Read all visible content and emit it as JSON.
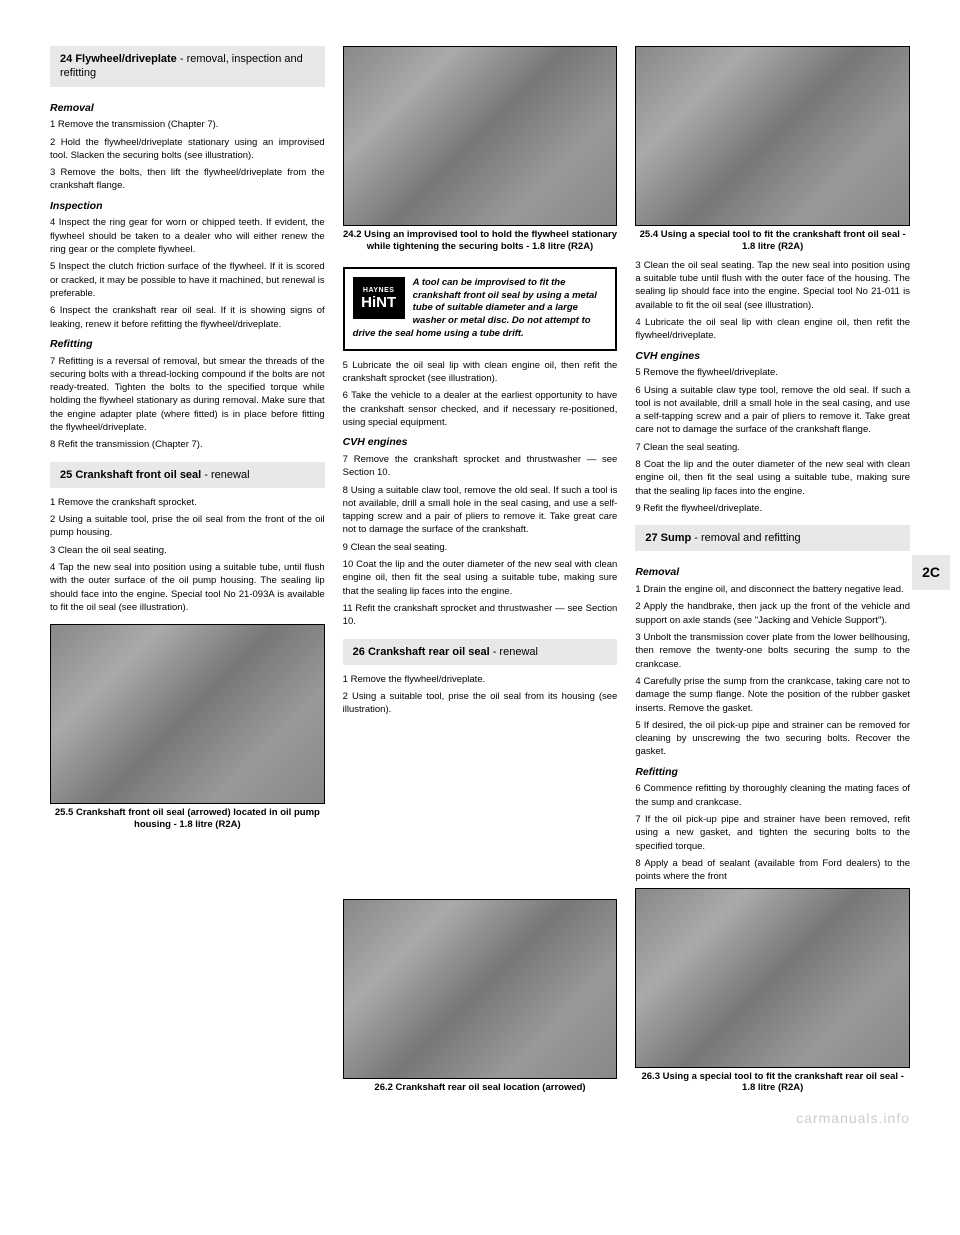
{
  "side_tab": "2C",
  "watermark": "carmanuals.info",
  "col1": {
    "sec24": {
      "num": "24",
      "title": "Flywheel/driveplate",
      "subtitle": " - removal, inspection and refitting",
      "removal_h": "Removal",
      "p1": "1 Remove the transmission (Chapter 7).",
      "p2": "2 Hold the flywheel/driveplate stationary using an improvised tool. Slacken the securing bolts (see illustration).",
      "p3": "3 Remove the bolts, then lift the flywheel/driveplate from the crankshaft flange.",
      "inspection_h": "Inspection",
      "p4": "4 Inspect the ring gear for worn or chipped teeth. If evident, the flywheel should be taken to a dealer who will either renew the ring gear or the complete flywheel.",
      "p5": "5 Inspect the clutch friction surface of the flywheel. If it is scored or cracked, it may be possible to have it machined, but renewal is preferable.",
      "p6": "6 Inspect the crankshaft rear oil seal. If it is showing signs of leaking, renew it before refitting the flywheel/driveplate.",
      "refitting_h": "Refitting",
      "p7": "7 Refitting is a reversal of removal, but smear the threads of the securing bolts with a thread-locking compound if the bolts are not ready-treated. Tighten the bolts to the specified torque while holding the flywheel stationary as during removal. Make sure that the engine adapter plate (where fitted) is in place before fitting the flywheel/driveplate.",
      "p8": "8 Refit the transmission (Chapter 7)."
    },
    "sec25": {
      "num": "25",
      "title": "Crankshaft front oil seal",
      "subtitle": " - renewal",
      "p1": "1 Remove the crankshaft sprocket.",
      "p2": "2 Using a suitable tool, prise the oil seal from the front of the oil pump housing.",
      "p3": "3 Clean the oil seal seating.",
      "p4": "4 Tap the new seal into position using a suitable tube, until flush with the outer surface of the oil pump housing. The sealing lip should face into the engine. Special tool No 21-093A is available to fit the oil seal (see illustration)."
    },
    "fig25_5": {
      "caption": "25.5 Crankshaft front oil seal (arrowed) located in oil pump housing - 1.8 litre (R2A)"
    }
  },
  "col2": {
    "fig24_2": {
      "caption": "24.2 Using an improvised tool to hold the flywheel stationary while tightening the securing bolts - 1.8 litre (R2A)"
    },
    "hint": {
      "haynes": "HAYNES",
      "hint": "HiNT",
      "text": "A tool can be improvised to fit the crankshaft front oil seal by using a metal tube of suitable diameter and a large washer or metal disc. Do not attempt to drive the seal home using a tube drift."
    },
    "p5": "5 Lubricate the oil seal lip with clean engine oil, then refit the crankshaft sprocket (see illustration).",
    "p6": "6 Take the vehicle to a dealer at the earliest opportunity to have the crankshaft sensor checked, and if necessary re-positioned, using special equipment.",
    "cvh_h": "CVH engines",
    "p7": "7 Remove the crankshaft sprocket and thrustwasher — see Section 10.",
    "p8": "8 Using a suitable claw tool, remove the old seal. If such a tool is not available, drill a small hole in the seal casing, and use a self-tapping screw and a pair of pliers to remove it. Take great care not to damage the surface of the crankshaft.",
    "p9": "9 Clean the seal seating.",
    "p10": "10 Coat the lip and the outer diameter of the new seal with clean engine oil, then fit the seal using a suitable tube, making sure that the sealing lip faces into the engine.",
    "p11": "11 Refit the crankshaft sprocket and thrustwasher — see Section 10.",
    "sec26": {
      "num": "26",
      "title": "Crankshaft rear oil seal",
      "subtitle": " - renewal",
      "p1": "1 Remove the flywheel/driveplate.",
      "p2": "2 Using a suitable tool, prise the oil seal from its housing (see illustration)."
    },
    "fig26_2": {
      "caption": "26.2 Crankshaft rear oil seal location (arrowed)"
    }
  },
  "col3": {
    "fig25_4": {
      "caption": "25.4 Using a special tool to fit the crankshaft front oil seal - 1.8 litre (R2A)"
    },
    "p3": "3 Clean the oil seal seating. Tap the new seal into position using a suitable tube until flush with the outer face of the housing. The sealing lip should face into the engine. Special tool No 21-011 is available to fit the oil seal (see illustration).",
    "p4": "4 Lubricate the oil seal lip with clean engine oil, then refit the flywheel/driveplate.",
    "cvh_h": "CVH engines",
    "p5": "5 Remove the flywheel/driveplate.",
    "p6": "6 Using a suitable claw type tool, remove the old seal. If such a tool is not available, drill a small hole in the seal casing, and use a self-tapping screw and a pair of pliers to remove it. Take great care not to damage the surface of the crankshaft flange.",
    "p7": "7 Clean the seal seating.",
    "p8": "8 Coat the lip and the outer diameter of the new seal with clean engine oil, then fit the seal using a suitable tube, making sure that the sealing lip faces into the engine.",
    "p9": "9 Refit the flywheel/driveplate.",
    "sec27": {
      "num": "27",
      "title": "Sump",
      "subtitle": " - removal and refitting",
      "removal_h": "Removal",
      "p1": "1 Drain the engine oil, and disconnect the battery negative lead.",
      "p2": "2 Apply the handbrake, then jack up the front of the vehicle and support on axle stands (see \"Jacking and Vehicle Support\").",
      "p3": "3 Unbolt the transmission cover plate from the lower bellhousing, then remove the twenty-one bolts securing the sump to the crankcase.",
      "p4": "4 Carefully prise the sump from the crankcase, taking care not to damage the sump flange. Note the position of the rubber gasket inserts. Remove the gasket.",
      "p5": "5 If desired, the oil pick-up pipe and strainer can be removed for cleaning by unscrewing the two securing bolts. Recover the gasket.",
      "refitting_h": "Refitting",
      "p6": "6 Commence refitting by thoroughly cleaning the mating faces of the sump and crankcase.",
      "p7": "7 If the oil pick-up pipe and strainer have been removed, refit using a new gasket, and tighten the securing bolts to the specified torque.",
      "p8": "8 Apply a bead of sealant (available from Ford dealers) to the points where the front"
    },
    "fig26_3": {
      "caption": "26.3 Using a special tool to fit the crankshaft rear oil seal - 1.8 litre (R2A)"
    }
  }
}
